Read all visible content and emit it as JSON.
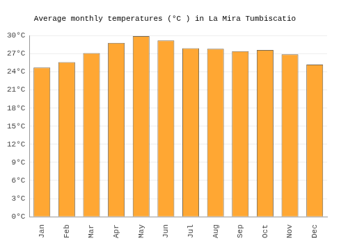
{
  "chart_data": {
    "type": "bar",
    "title": "Average monthly temperatures (°C ) in La Mira Tumbiscatio",
    "categories": [
      "Jan",
      "Feb",
      "Mar",
      "Apr",
      "May",
      "Jun",
      "Jul",
      "Aug",
      "Sep",
      "Oct",
      "Nov",
      "Dec"
    ],
    "values": [
      24.7,
      25.6,
      27.1,
      28.8,
      29.9,
      29.2,
      27.9,
      27.8,
      27.4,
      27.6,
      26.9,
      25.2
    ],
    "color": "#ffa733",
    "ylim": [
      0,
      30
    ],
    "yticks": [
      {
        "value": 0,
        "label": "0°C"
      },
      {
        "value": 3,
        "label": "3°C"
      },
      {
        "value": 6,
        "label": "6°C"
      },
      {
        "value": 9,
        "label": "9°C"
      },
      {
        "value": 12,
        "label": "12°C"
      },
      {
        "value": 15,
        "label": "15°C"
      },
      {
        "value": 18,
        "label": "18°C"
      },
      {
        "value": 21,
        "label": "21°C"
      },
      {
        "value": 24,
        "label": "24°C"
      },
      {
        "value": 27,
        "label": "27°C"
      },
      {
        "value": 30,
        "label": "30°C"
      }
    ],
    "grid": true
  }
}
